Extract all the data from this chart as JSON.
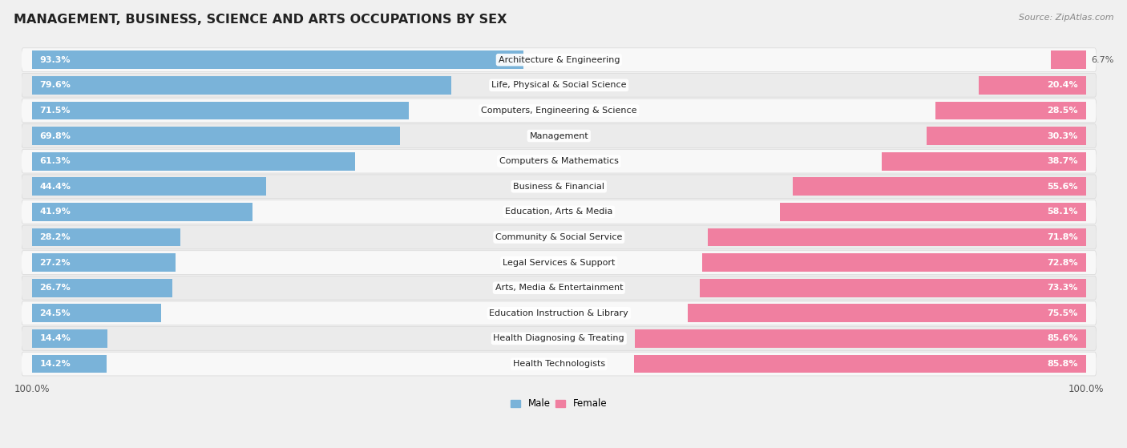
{
  "title": "MANAGEMENT, BUSINESS, SCIENCE AND ARTS OCCUPATIONS BY SEX",
  "source": "Source: ZipAtlas.com",
  "categories": [
    "Architecture & Engineering",
    "Life, Physical & Social Science",
    "Computers, Engineering & Science",
    "Management",
    "Computers & Mathematics",
    "Business & Financial",
    "Education, Arts & Media",
    "Community & Social Service",
    "Legal Services & Support",
    "Arts, Media & Entertainment",
    "Education Instruction & Library",
    "Health Diagnosing & Treating",
    "Health Technologists"
  ],
  "male_pct": [
    93.3,
    79.6,
    71.5,
    69.8,
    61.3,
    44.4,
    41.9,
    28.2,
    27.2,
    26.7,
    24.5,
    14.4,
    14.2
  ],
  "female_pct": [
    6.7,
    20.4,
    28.5,
    30.3,
    38.7,
    55.6,
    58.1,
    71.8,
    72.8,
    73.3,
    75.5,
    85.6,
    85.8
  ],
  "male_color": "#7ab3d9",
  "female_color": "#f07fa0",
  "bg_color": "#f0f0f0",
  "row_bg_even": "#f8f8f8",
  "row_bg_odd": "#ebebeb",
  "title_fontsize": 11.5,
  "label_fontsize": 8,
  "bar_label_fontsize": 8,
  "legend_fontsize": 8.5,
  "source_fontsize": 8
}
